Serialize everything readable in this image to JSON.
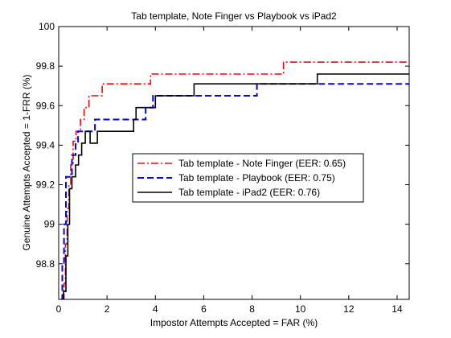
{
  "chart_data": {
    "type": "line",
    "title": "Tab template, Note Finger vs Playbook vs iPad2",
    "xlabel": "Impostor Attempts Accepted = FAR (%)",
    "ylabel": "Genuine Attempts Accepted = 1-FRR (%)",
    "xlim": [
      0,
      14.5
    ],
    "ylim": [
      98.62,
      100
    ],
    "x_ticks": [
      0,
      2,
      4,
      6,
      8,
      10,
      12,
      14
    ],
    "x_tick_labels": [
      "0",
      "2",
      "4",
      "6",
      "8",
      "10",
      "12",
      "14"
    ],
    "y_ticks": [
      98.8,
      99,
      99.2,
      99.4,
      99.6,
      99.8,
      100
    ],
    "y_tick_labels": [
      "98.8",
      "99",
      "99.2",
      "99.4",
      "99.6",
      "99.8",
      "100"
    ],
    "grid": false,
    "legend_position": "center-right",
    "series": [
      {
        "name": "Tab template - Note Finger (EER: 0.65)",
        "color": "#ff0000",
        "line_style": "dashdot",
        "x": [
          0.15,
          0.22,
          0.22,
          0.28,
          0.28,
          0.35,
          0.35,
          0.42,
          0.42,
          0.5,
          0.5,
          0.6,
          0.6,
          0.72,
          0.72,
          0.9,
          0.9,
          1.05,
          1.05,
          1.25,
          1.25,
          1.5,
          1.5,
          1.8,
          1.8,
          2.1,
          2.1,
          3.8,
          3.8,
          9.3,
          9.3,
          14.5
        ],
        "y": [
          98.62,
          98.62,
          98.7,
          98.7,
          98.9,
          98.9,
          99.08,
          99.08,
          99.2,
          99.2,
          99.3,
          99.3,
          99.42,
          99.42,
          99.47,
          99.47,
          99.53,
          99.53,
          99.59,
          99.59,
          99.65,
          99.65,
          99.65,
          99.65,
          99.71,
          99.71,
          99.71,
          99.71,
          99.76,
          99.76,
          99.82,
          99.82
        ]
      },
      {
        "name": "Tab template - Playbook (EER: 0.75)",
        "color": "#0000ff",
        "line_style": "dashed",
        "x": [
          0.1,
          0.15,
          0.15,
          0.22,
          0.22,
          0.3,
          0.3,
          0.55,
          0.55,
          0.7,
          0.7,
          0.8,
          0.8,
          0.9,
          0.9,
          1.05,
          1.05,
          1.5,
          1.5,
          2.2,
          2.2,
          3.6,
          3.6,
          3.9,
          3.9,
          6.0,
          6.0,
          8.2,
          8.2,
          10.7,
          10.7,
          14.5
        ],
        "y": [
          98.62,
          98.62,
          98.8,
          98.8,
          99.0,
          99.0,
          99.24,
          99.24,
          99.35,
          99.35,
          99.41,
          99.41,
          99.47,
          99.47,
          99.47,
          99.47,
          99.47,
          99.47,
          99.53,
          99.53,
          99.53,
          99.53,
          99.59,
          99.59,
          99.65,
          99.65,
          99.65,
          99.65,
          99.71,
          99.71,
          99.71,
          99.71
        ]
      },
      {
        "name": "Tab template - iPad2 (EER: 0.76)",
        "color": "#000000",
        "line_style": "solid",
        "x": [
          0.1,
          0.2,
          0.2,
          0.3,
          0.3,
          0.38,
          0.38,
          0.45,
          0.45,
          0.55,
          0.55,
          0.7,
          0.7,
          0.82,
          0.82,
          0.95,
          0.95,
          1.1,
          1.1,
          1.3,
          1.3,
          1.6,
          1.6,
          1.85,
          1.85,
          3.1,
          3.1,
          3.2,
          3.2,
          3.7,
          3.7,
          4.0,
          4.0,
          5.6,
          5.6,
          10.7,
          10.7,
          14.5
        ],
        "y": [
          98.62,
          98.62,
          98.66,
          98.66,
          98.84,
          98.84,
          99.0,
          99.0,
          99.18,
          99.18,
          99.24,
          99.24,
          99.3,
          99.3,
          99.35,
          99.35,
          99.41,
          99.41,
          99.47,
          99.47,
          99.41,
          99.41,
          99.47,
          99.47,
          99.47,
          99.47,
          99.53,
          99.53,
          99.59,
          99.59,
          99.59,
          99.59,
          99.65,
          99.65,
          99.71,
          99.71,
          99.76,
          99.76
        ]
      }
    ]
  }
}
